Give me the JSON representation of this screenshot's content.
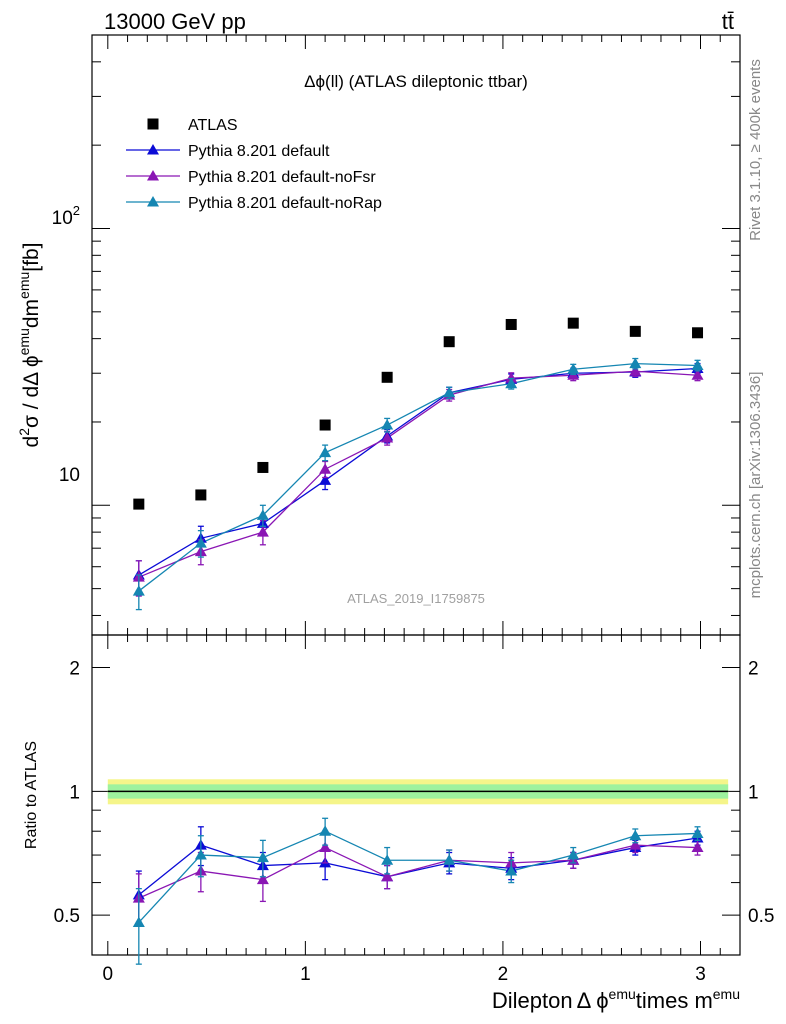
{
  "header": {
    "left": "13000 GeV pp",
    "right": "tt̄"
  },
  "side_labels": {
    "rivet": "Rivet 3.1.10, ≥ 400k events",
    "mcplots": "mcplots.cern.ch [arXiv:1306.3436]"
  },
  "chart_data": {
    "type": "scatter",
    "title": "Δϕ(ll) (ATLAS dileptonic ttbar)",
    "watermark": "ATLAS_2019_I1759875",
    "xlabel": "Dilepton Δ ϕ^emu times m^emu",
    "xlabel_main": "Dilepton",
    "xlabel_delta": "Δ ϕ",
    "xlabel_sup1": "emu",
    "xlabel_times": "times m",
    "xlabel_sup2": "emu",
    "ylabel": "d²σ / dΔ ϕ^emu dm^emu [fb]",
    "ylabel_d": "d",
    "ylabel_2": "2",
    "ylabel_sigma": "σ / dΔ ϕ",
    "ylabel_emu1": "emu",
    "ylabel_dm": "dm",
    "ylabel_emu2": "emu",
    "ylabel_unit": "[fb]",
    "ratio_ylabel": "Ratio to ATLAS",
    "xlim": [
      -0.08,
      3.2
    ],
    "ylim": [
      3.4,
      500
    ],
    "yscale": "log",
    "ratio_ylim": [
      0.4,
      2.4
    ],
    "x_ticks": [
      "0",
      "1",
      "2",
      "3"
    ],
    "y_ticks": [
      "10",
      "10²"
    ],
    "y_tick_10": "10",
    "y_tick_100_base": "10",
    "y_tick_100_exp": "2",
    "ratio_ticks": [
      "0.5",
      "1",
      "2"
    ],
    "legend_position": "top-left",
    "x": [
      0.157,
      0.471,
      0.785,
      1.1,
      1.414,
      1.728,
      2.042,
      2.356,
      2.67,
      2.985
    ],
    "series": [
      {
        "name": "ATLAS",
        "color": "#000000",
        "marker": "square",
        "values": [
          10.1,
          10.9,
          13.7,
          19.5,
          29.0,
          39.0,
          45.0,
          45.5,
          42.5,
          42.0
        ],
        "band_inner": 0.04,
        "band_outer": 0.07
      },
      {
        "name": "Pythia 8.201 default",
        "color": "#0b0bd6",
        "marker": "triangle",
        "values": [
          5.6,
          7.6,
          8.6,
          12.3,
          17.8,
          25.5,
          28.5,
          30.0,
          30.3,
          31.2
        ],
        "errors": [
          0.7,
          0.8,
          0.6,
          0.9,
          1.0,
          1.2,
          1.3,
          1.3,
          1.3,
          1.3
        ],
        "ratio": [
          0.56,
          0.74,
          0.66,
          0.67,
          0.62,
          0.67,
          0.65,
          0.68,
          0.73,
          0.77
        ],
        "ratio_err": [
          0.08,
          0.08,
          0.05,
          0.06,
          0.04,
          0.04,
          0.04,
          0.03,
          0.03,
          0.03
        ]
      },
      {
        "name": "Pythia 8.201 default-noFsr",
        "color": "#8a16b4",
        "marker": "triangle",
        "values": [
          5.5,
          6.8,
          8.0,
          13.5,
          17.5,
          25.0,
          28.8,
          29.5,
          30.5,
          29.5
        ],
        "errors": [
          0.8,
          0.7,
          0.8,
          0.9,
          1.0,
          1.2,
          1.3,
          1.3,
          1.3,
          1.3
        ],
        "ratio": [
          0.55,
          0.64,
          0.61,
          0.73,
          0.62,
          0.68,
          0.67,
          0.68,
          0.74,
          0.73
        ],
        "ratio_err": [
          0.08,
          0.07,
          0.07,
          0.06,
          0.04,
          0.04,
          0.04,
          0.03,
          0.03,
          0.03
        ]
      },
      {
        "name": "Pythia 8.201 default-noRap",
        "color": "#1586b2",
        "marker": "triangle",
        "values": [
          4.9,
          7.3,
          9.2,
          15.5,
          19.5,
          25.5,
          27.5,
          31.0,
          32.5,
          32.0
        ],
        "errors": [
          0.7,
          0.8,
          0.8,
          1.0,
          1.1,
          1.2,
          1.2,
          1.3,
          1.4,
          1.4
        ],
        "ratio": [
          0.48,
          0.7,
          0.69,
          0.8,
          0.68,
          0.68,
          0.64,
          0.7,
          0.78,
          0.79
        ],
        "ratio_err": [
          0.1,
          0.08,
          0.07,
          0.06,
          0.05,
          0.04,
          0.04,
          0.03,
          0.03,
          0.03
        ]
      }
    ]
  }
}
